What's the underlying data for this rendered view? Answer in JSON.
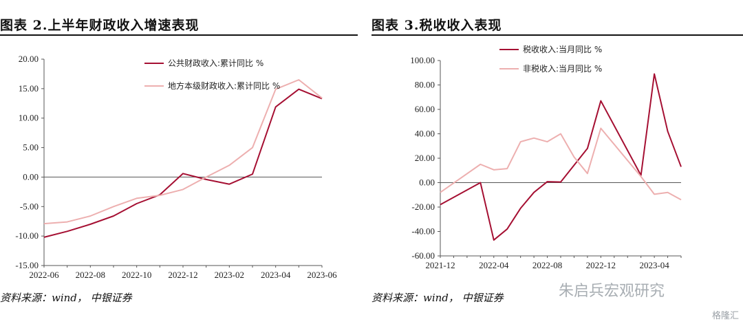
{
  "left_panel": {
    "title": "图表 2.上半年财政收入增速表现",
    "source": "资料来源：wind， 中银证券"
  },
  "right_panel": {
    "title": "图表 3.税收收入表现",
    "source": "资料来源：wind， 中银证券"
  },
  "watermark": {
    "text": "朱启兵宏观研究",
    "logo": "格隆汇"
  },
  "colors": {
    "dark_red": "#A50F32",
    "pink": "#EDAFAF",
    "axis": "#555555"
  },
  "chart_data": [
    {
      "type": "line",
      "title": "",
      "x": [
        "2022-06",
        "2022-07",
        "2022-08",
        "2022-09",
        "2022-10",
        "2022-11",
        "2022-12",
        "2023-01",
        "2023-02",
        "2023-03",
        "2023-04",
        "2023-05",
        "2023-06"
      ],
      "x_tick_labels": [
        "2022-06",
        "2022-08",
        "2022-10",
        "2022-12",
        "2023-02",
        "2023-04",
        "2023-06"
      ],
      "ylim": [
        -15,
        20
      ],
      "y_tick_labels": [
        "20.00",
        "15.00",
        "10.00",
        "5.00",
        "0.00",
        "-5.00",
        "-10.00",
        "-15.00"
      ],
      "legend_placement": "top-right",
      "series": [
        {
          "name": "公共财政收入:累计同比 %",
          "color": "#A50F32",
          "values": [
            -10.2,
            -9.2,
            -8.0,
            -6.6,
            -4.5,
            -3.0,
            0.6,
            -0.4,
            -1.2,
            0.5,
            11.9,
            14.9,
            13.3
          ]
        },
        {
          "name": "地方本级财政收入:累计同比 %",
          "color": "#EDAFAF",
          "values": [
            -7.9,
            -7.6,
            -6.6,
            -5.0,
            -3.6,
            -3.1,
            -2.1,
            0.0,
            2.0,
            5.0,
            14.9,
            16.5,
            13.4
          ]
        }
      ]
    },
    {
      "type": "line",
      "title": "",
      "x": [
        "2021-12",
        "2022-01",
        "2022-02",
        "2022-03",
        "2022-04",
        "2022-05",
        "2022-06",
        "2022-07",
        "2022-08",
        "2022-09",
        "2022-10",
        "2022-11",
        "2022-12",
        "2023-01",
        "2023-02",
        "2023-03",
        "2023-04",
        "2023-05",
        "2023-06"
      ],
      "x_tick_labels": [
        "2021-12",
        "2022-04",
        "2022-08",
        "2022-12",
        "2023-04"
      ],
      "ylim": [
        -60,
        100
      ],
      "y_tick_labels": [
        "100.00",
        "80.00",
        "60.00",
        "40.00",
        "20.00",
        "0.00",
        "-20.00",
        "-40.00",
        "-60.00"
      ],
      "legend_placement": "top",
      "series": [
        {
          "name": "税收收入:当月同比 %",
          "color": "#A50F32",
          "values": [
            -18.0,
            null,
            null,
            0.0,
            -47.0,
            -38.0,
            -21.0,
            -8.0,
            0.8,
            0.5,
            null,
            28.0,
            67.0,
            null,
            null,
            6.0,
            89.0,
            42.0,
            13.0
          ]
        },
        {
          "name": "非税收入:当月同比 %",
          "color": "#EDAFAF",
          "values": [
            -8.0,
            null,
            null,
            15.0,
            10.5,
            11.5,
            33.5,
            36.5,
            33.5,
            40.0,
            21.0,
            7.5,
            44.5,
            null,
            null,
            5.0,
            -9.5,
            -8.0,
            -14.0
          ]
        }
      ]
    }
  ]
}
